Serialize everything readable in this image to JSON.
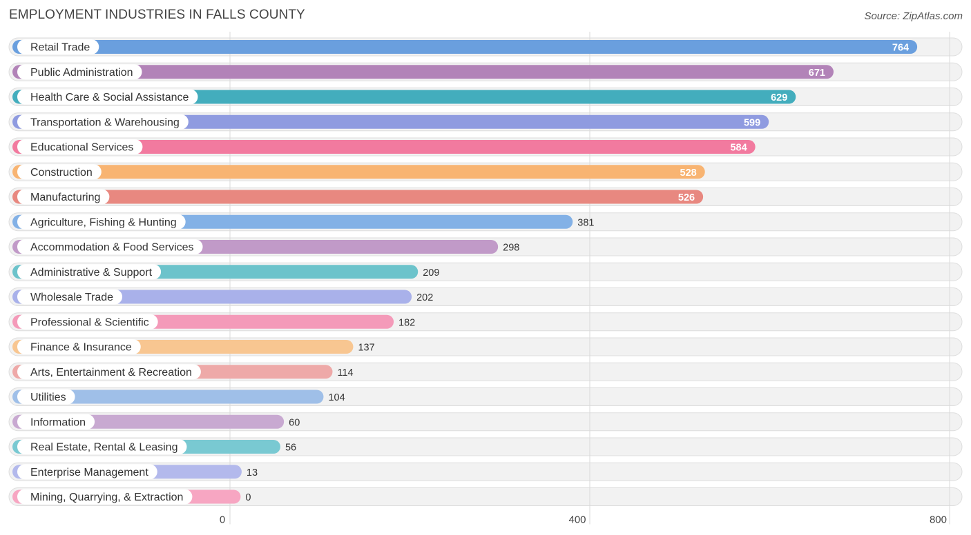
{
  "header": {
    "title": "EMPLOYMENT INDUSTRIES IN FALLS COUNTY",
    "source": "Source: ZipAtlas.com"
  },
  "chart_data": {
    "type": "bar",
    "orientation": "horizontal",
    "title": "EMPLOYMENT INDUSTRIES IN FALLS COUNTY",
    "xlabel": "",
    "ylabel": "",
    "xlim": [
      0,
      800
    ],
    "ticks": [
      0,
      400,
      800
    ],
    "tick_labels": [
      "0",
      "400",
      "800"
    ],
    "grid": true,
    "categories": [
      "Retail Trade",
      "Public Administration",
      "Health Care & Social Assistance",
      "Transportation & Warehousing",
      "Educational Services",
      "Construction",
      "Manufacturing",
      "Agriculture, Fishing & Hunting",
      "Accommodation & Food Services",
      "Administrative & Support",
      "Wholesale Trade",
      "Professional & Scientific",
      "Finance & Insurance",
      "Arts, Entertainment & Recreation",
      "Utilities",
      "Information",
      "Real Estate, Rental & Leasing",
      "Enterprise Management",
      "Mining, Quarrying, & Extraction"
    ],
    "values": [
      764,
      671,
      629,
      599,
      584,
      528,
      526,
      381,
      298,
      209,
      202,
      182,
      137,
      114,
      104,
      60,
      56,
      13,
      0
    ],
    "value_labels": [
      "764",
      "671",
      "629",
      "599",
      "584",
      "528",
      "526",
      "381",
      "298",
      "209",
      "202",
      "182",
      "137",
      "114",
      "104",
      "60",
      "56",
      "13",
      "0"
    ],
    "colors": [
      "#6a9fde",
      "#b283b8",
      "#43adbd",
      "#8f9be0",
      "#f27a9f",
      "#f8b472",
      "#e88880",
      "#83b1e6",
      "#c19ac8",
      "#6cc3cb",
      "#a9b1ea",
      "#f49ab9",
      "#f8c691",
      "#eea9a8",
      "#9fbfe8",
      "#c8a9d1",
      "#79c9d2",
      "#b3b9ec",
      "#f7a6c2"
    ]
  }
}
